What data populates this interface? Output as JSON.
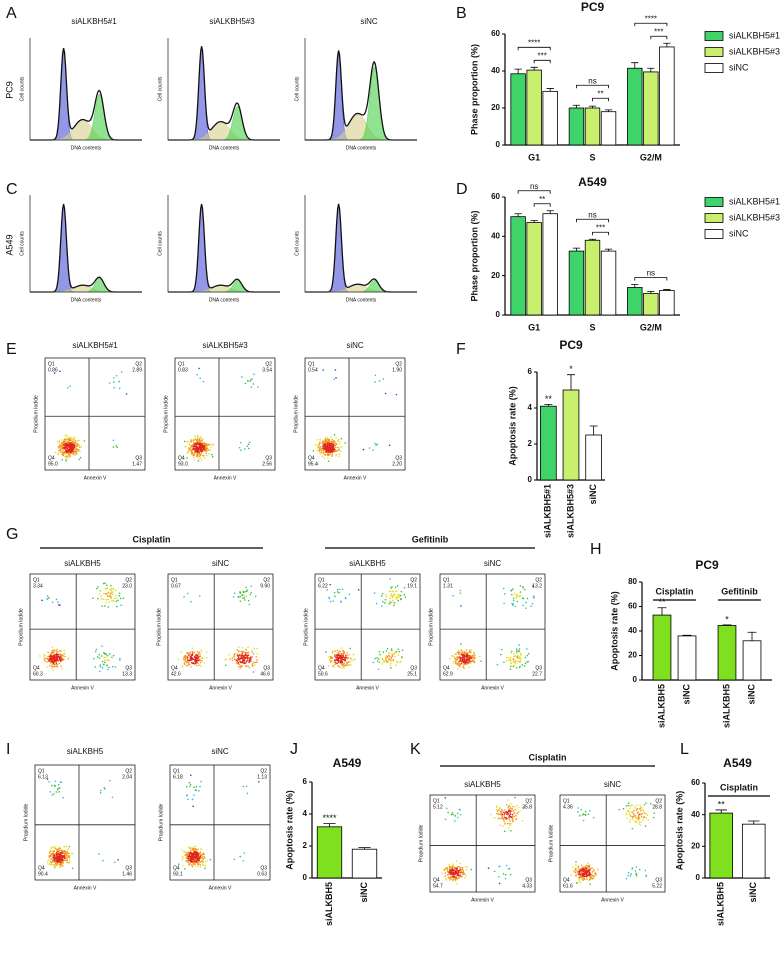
{
  "chart_data": [
    {
      "panel": "A",
      "type": "cell-cycle",
      "row_label": "PC9",
      "xlabel": "DNA contents",
      "ylabel": "Cell counts",
      "titles": [
        "siALKBH5#1",
        "siALKBH5#3",
        "siNC"
      ]
    },
    {
      "panel": "B",
      "type": "grouped-bar",
      "title": "PC9",
      "ylabel": "Phase proportion (%)",
      "categories": [
        "G1",
        "S",
        "G2/M"
      ],
      "ylim": [
        0,
        60
      ],
      "yticks": [
        0,
        20,
        40,
        60
      ],
      "legend": "right",
      "series": [
        {
          "name": "siALKBH5#1",
          "color": "#3fd46a",
          "values": [
            38.5,
            20,
            41.5
          ],
          "errors": [
            2.5,
            1.5,
            3
          ]
        },
        {
          "name": "siALKBH5#3",
          "color": "#c8f06e",
          "values": [
            40.5,
            20,
            39.5
          ],
          "errors": [
            1.5,
            1,
            2
          ]
        },
        {
          "name": "siNC",
          "color": "#ffffff",
          "values": [
            29,
            18,
            53
          ],
          "errors": [
            1.5,
            1,
            2
          ]
        }
      ],
      "annotations": [
        {
          "text": "***",
          "category": 0,
          "series": [
            1,
            2
          ]
        },
        {
          "text": "****",
          "category": 0,
          "series": [
            0,
            2
          ]
        },
        {
          "text": "**",
          "category": 1,
          "series": [
            1,
            2
          ]
        },
        {
          "text": "ns",
          "category": 1,
          "series": [
            0,
            2
          ]
        },
        {
          "text": "***",
          "category": 2,
          "series": [
            1,
            2
          ]
        },
        {
          "text": "****",
          "category": 2,
          "series": [
            0,
            2
          ]
        }
      ]
    },
    {
      "panel": "C",
      "type": "cell-cycle",
      "row_label": "A549",
      "xlabel": "DNA contents",
      "ylabel": "Cell counts"
    },
    {
      "panel": "D",
      "type": "grouped-bar",
      "title": "A549",
      "ylabel": "Phase proportion (%)",
      "categories": [
        "G1",
        "S",
        "G2/M"
      ],
      "ylim": [
        0,
        60
      ],
      "yticks": [
        0,
        20,
        40,
        60
      ],
      "legend": "right",
      "series": [
        {
          "name": "siALKBH5#1",
          "color": "#3fd46a",
          "values": [
            50,
            32.5,
            14
          ],
          "errors": [
            1.5,
            1.5,
            1.5
          ]
        },
        {
          "name": "siALKBH5#3",
          "color": "#c8f06e",
          "values": [
            47,
            38,
            11
          ],
          "errors": [
            1,
            0.5,
            1
          ]
        },
        {
          "name": "siNC",
          "color": "#ffffff",
          "values": [
            51.5,
            32.5,
            12.5
          ],
          "errors": [
            1.5,
            1,
            0.5
          ]
        }
      ],
      "annotations": [
        {
          "text": "**",
          "category": 0,
          "series": [
            1,
            2
          ]
        },
        {
          "text": "ns",
          "category": 0,
          "series": [
            0,
            2
          ]
        },
        {
          "text": "***",
          "category": 1,
          "series": [
            1,
            2
          ]
        },
        {
          "text": "ns",
          "category": 1,
          "series": [
            0,
            2
          ]
        },
        {
          "text": "ns",
          "category": 2,
          "series": [
            0,
            2
          ]
        }
      ]
    },
    {
      "panel": "E",
      "type": "flow",
      "xlabel": "Annexin V",
      "ylabel": "Propidium Iodide",
      "groups": [
        {
          "plots": [
            {
              "title": "siALKBH5#1",
              "quadrants": [
                {
                  "name": "Q1",
                  "value": "0.86"
                },
                {
                  "name": "Q2",
                  "value": "2.89"
                },
                {
                  "name": "Q3",
                  "value": "1.47"
                },
                {
                  "name": "Q4",
                  "value": "95.0"
                }
              ]
            },
            {
              "title": "siALKBH5#3",
              "quadrants": [
                {
                  "name": "Q1",
                  "value": "0.83"
                },
                {
                  "name": "Q2",
                  "value": "3.54"
                },
                {
                  "name": "Q3",
                  "value": "2.56"
                },
                {
                  "name": "Q4",
                  "value": "93.0"
                }
              ]
            },
            {
              "title": "siNC",
              "quadrants": [
                {
                  "name": "Q1",
                  "value": "0.54"
                },
                {
                  "name": "Q2",
                  "value": "1.90"
                },
                {
                  "name": "Q3",
                  "value": "2.20"
                },
                {
                  "name": "Q4",
                  "value": "95.4"
                }
              ]
            }
          ]
        }
      ]
    },
    {
      "panel": "F",
      "type": "bar",
      "title": "PC9",
      "ylabel": "Apoptosis rate (%)",
      "categories": [
        "siALKBH5#1",
        "siALKBH5#3",
        "siNC"
      ],
      "values": [
        4.1,
        5.0,
        2.5
      ],
      "errors": [
        0.1,
        0.85,
        0.5
      ],
      "colors": [
        "#3fd46a",
        "#c8f06e",
        "#ffffff"
      ],
      "ylim": [
        0,
        6
      ],
      "yticks": [
        0,
        2,
        4,
        6
      ],
      "annotations": [
        {
          "text": "**",
          "category": 0
        },
        {
          "text": "*",
          "category": 1
        }
      ]
    },
    {
      "panel": "G",
      "type": "flow",
      "xlabel": "Annexin V",
      "ylabel": "Propidium Iodide",
      "groups": [
        {
          "title": "Cisplatin",
          "plots": [
            {
              "title": "siALKBH5",
              "quadrants": [
                {
                  "name": "Q1",
                  "value": "3.34"
                },
                {
                  "name": "Q2",
                  "value": "23.0"
                },
                {
                  "name": "Q3",
                  "value": "13.3"
                },
                {
                  "name": "Q4",
                  "value": "60.3"
                }
              ]
            },
            {
              "title": "siNC",
              "quadrants": [
                {
                  "name": "Q1",
                  "value": "0.67"
                },
                {
                  "name": "Q2",
                  "value": "9.90"
                },
                {
                  "name": "Q3",
                  "value": "46.6"
                },
                {
                  "name": "Q4",
                  "value": "42.6"
                }
              ]
            }
          ]
        },
        {
          "title": "Gefitinib",
          "plots": [
            {
              "title": "siALKBH5",
              "quadrants": [
                {
                  "name": "Q1",
                  "value": "6.22"
                },
                {
                  "name": "Q2",
                  "value": "19.1"
                },
                {
                  "name": "Q3",
                  "value": "25.1"
                },
                {
                  "name": "Q4",
                  "value": "50.6"
                }
              ]
            },
            {
              "title": "siNC",
              "quadrants": [
                {
                  "name": "Q1",
                  "value": "1.31"
                },
                {
                  "name": "Q2",
                  "value": "13.2"
                },
                {
                  "name": "Q3",
                  "value": "22.7"
                },
                {
                  "name": "Q4",
                  "value": "62.9"
                }
              ]
            }
          ]
        }
      ]
    },
    {
      "panel": "H",
      "type": "grouped-bar",
      "title": "PC9",
      "ylabel": "Apoptosis rate (%)",
      "categories": [
        "Cisplatin",
        "Gefitinib"
      ],
      "ylim": [
        0,
        80
      ],
      "yticks": [
        0,
        20,
        40,
        60,
        80
      ],
      "legend": "none",
      "series": [
        {
          "name": "siALKBH5",
          "color": "#7ee01e",
          "values": [
            53,
            44.5
          ],
          "errors": [
            6,
            0.5
          ]
        },
        {
          "name": "siNC",
          "color": "#ffffff",
          "values": [
            36,
            32
          ],
          "errors": [
            0.5,
            7
          ]
        }
      ],
      "annotations": [
        {
          "text": "**",
          "category": 0,
          "series": [
            0
          ]
        },
        {
          "text": "*",
          "category": 1,
          "series": [
            0
          ]
        }
      ]
    },
    {
      "panel": "I",
      "type": "flow",
      "xlabel": "Annexin V",
      "ylabel": "Propidium Iodide",
      "groups": [
        {
          "plots": [
            {
              "title": "siALKBH5",
              "quadrants": [
                {
                  "name": "Q1",
                  "value": "6.13"
                },
                {
                  "name": "Q2",
                  "value": "2.04"
                },
                {
                  "name": "Q3",
                  "value": "1.46"
                },
                {
                  "name": "Q4",
                  "value": "90.4"
                }
              ]
            },
            {
              "title": "siNC",
              "quadrants": [
                {
                  "name": "Q1",
                  "value": "6.18"
                },
                {
                  "name": "Q2",
                  "value": "1.13"
                },
                {
                  "name": "Q3",
                  "value": "0.63"
                },
                {
                  "name": "Q4",
                  "value": "93.1"
                }
              ]
            }
          ]
        }
      ]
    },
    {
      "panel": "J",
      "type": "bar",
      "title": "A549",
      "ylabel": "Apoptosis rate (%)",
      "categories": [
        "siALKBH5",
        "siNC"
      ],
      "values": [
        3.2,
        1.8
      ],
      "errors": [
        0.2,
        0.1
      ],
      "colors": [
        "#7ee01e",
        "#ffffff"
      ],
      "ylim": [
        0,
        6
      ],
      "yticks": [
        0,
        2,
        4,
        6
      ],
      "annotations": [
        {
          "text": "****",
          "category": 0
        }
      ]
    },
    {
      "panel": "K",
      "type": "flow",
      "xlabel": "Annexin V",
      "ylabel": "Propidium Iodide",
      "groups": [
        {
          "title": "Cisplatin",
          "plots": [
            {
              "title": "siALKBH5",
              "quadrants": [
                {
                  "name": "Q1",
                  "value": "5.12"
                },
                {
                  "name": "Q2",
                  "value": "35.8"
                },
                {
                  "name": "Q3",
                  "value": "4.33"
                },
                {
                  "name": "Q4",
                  "value": "54.7"
                }
              ]
            },
            {
              "title": "siNC",
              "quadrants": [
                {
                  "name": "Q1",
                  "value": "4.36"
                },
                {
                  "name": "Q2",
                  "value": "28.8"
                },
                {
                  "name": "Q3",
                  "value": "5.22"
                },
                {
                  "name": "Q4",
                  "value": "61.6"
                }
              ]
            }
          ]
        }
      ]
    },
    {
      "panel": "L",
      "type": "bar",
      "title": "A549",
      "ylabel": "Apoptosis rate (%)",
      "group_label": "Cisplatin",
      "categories": [
        "siALKBH5",
        "siNC"
      ],
      "values": [
        41,
        34
      ],
      "errors": [
        2,
        2
      ],
      "colors": [
        "#7ee01e",
        "#ffffff"
      ],
      "ylim": [
        0,
        60
      ],
      "yticks": [
        0,
        20,
        40,
        60
      ],
      "annotations": [
        {
          "text": "**",
          "category": 0
        }
      ]
    }
  ]
}
